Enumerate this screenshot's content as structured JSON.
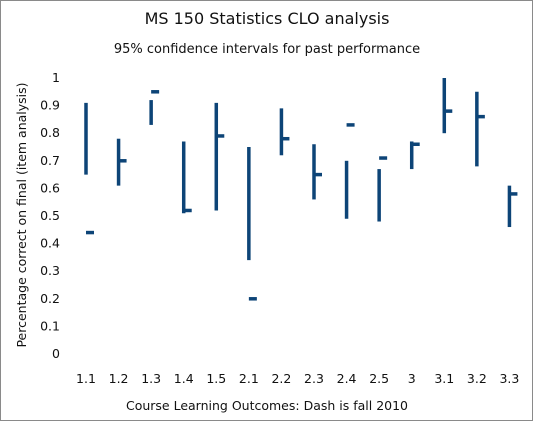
{
  "chart_data": {
    "type": "interval",
    "title": "MS 150 Statistics CLO analysis",
    "subtitle": "95% confidence intervals for past performance",
    "xlabel": "Course Learning Outcomes: Dash is fall 2010",
    "ylabel": "Percentage correct on final (item analysis)",
    "ylim": [
      0,
      1
    ],
    "yticks": [
      "0",
      "0.1",
      "0.2",
      "0.3",
      "0.4",
      "0.5",
      "0.6",
      "0.7",
      "0.8",
      "0.9",
      "1"
    ],
    "categories": [
      "1.1",
      "1.2",
      "1.3",
      "1.4",
      "1.5",
      "2.1",
      "2.2",
      "2.3",
      "2.4",
      "2.5",
      "3",
      "3.1",
      "3.2",
      "3.3"
    ],
    "series": [
      {
        "values_low": [
          0.65,
          0.61,
          0.83,
          0.51,
          0.52,
          0.34,
          0.72,
          0.56,
          0.49,
          0.48,
          0.67,
          0.8,
          0.68,
          0.46
        ]
      },
      {
        "values_high": [
          0.91,
          0.78,
          0.92,
          0.77,
          0.91,
          0.75,
          0.89,
          0.76,
          0.7,
          0.67,
          0.77,
          1.0,
          0.95,
          0.61
        ]
      },
      {
        "values_fall_2010": [
          0.44,
          0.7,
          0.95,
          0.52,
          0.79,
          0.2,
          0.78,
          0.65,
          0.83,
          0.71,
          0.76,
          0.88,
          0.86,
          0.58
        ]
      }
    ],
    "grid": false,
    "legend": "none",
    "color": "#0d4477"
  }
}
